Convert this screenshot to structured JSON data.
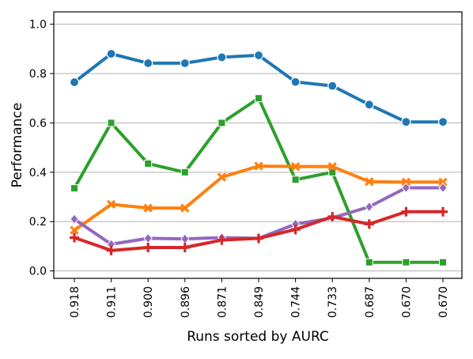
{
  "chart_data": {
    "type": "line",
    "title": "",
    "xlabel": "Runs sorted by AURC",
    "ylabel": "Performance",
    "categories": [
      "0.918",
      "0.911",
      "0.900",
      "0.896",
      "0.871",
      "0.849",
      "0.744",
      "0.733",
      "0.687",
      "0.670",
      "0.670"
    ],
    "ylim": [
      -0.03,
      1.05
    ],
    "yticks": [
      0.0,
      0.2,
      0.4,
      0.6,
      0.8,
      1.0
    ],
    "ytick_labels": [
      "0.0",
      "0.2",
      "0.4",
      "0.6",
      "0.8",
      "1.0"
    ],
    "grid": "horizontal",
    "legend": "none",
    "series": [
      {
        "color": "#1f77b4",
        "marker": "circle",
        "values": [
          0.765,
          0.88,
          0.842,
          0.842,
          0.866,
          0.874,
          0.766,
          0.75,
          0.674,
          0.604,
          0.604
        ]
      },
      {
        "color": "#2ca02c",
        "marker": "square",
        "values": [
          0.335,
          0.6,
          0.435,
          0.4,
          0.6,
          0.7,
          0.37,
          0.4,
          0.035,
          0.035,
          0.035
        ]
      },
      {
        "color": "#ff7f0e",
        "marker": "x",
        "values": [
          0.165,
          0.27,
          0.255,
          0.255,
          0.38,
          0.425,
          0.423,
          0.423,
          0.362,
          0.36,
          0.36
        ]
      },
      {
        "color": "#9467bd",
        "marker": "diamond",
        "values": [
          0.21,
          0.108,
          0.132,
          0.13,
          0.135,
          0.132,
          0.19,
          0.215,
          0.26,
          0.337,
          0.337
        ]
      },
      {
        "color": "#d62728",
        "marker": "plus",
        "values": [
          0.135,
          0.083,
          0.095,
          0.095,
          0.125,
          0.132,
          0.168,
          0.22,
          0.19,
          0.24,
          0.24
        ]
      }
    ]
  }
}
